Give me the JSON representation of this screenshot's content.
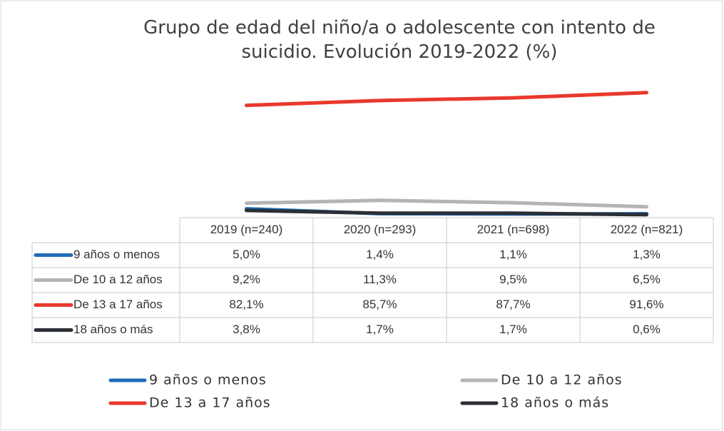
{
  "chart_data": {
    "type": "line",
    "title": "Grupo de edad del niño/a o adolescente con intento de suicidio. Evolución 2019-2022 (%)",
    "categories": [
      "2019 (n=240)",
      "2020 (n=293)",
      "2021 (n=698)",
      "2022 (n=821)"
    ],
    "ylim": [
      0,
      100
    ],
    "series": [
      {
        "name": "9 años o menos",
        "color": "#1f6cb8",
        "values": [
          5.0,
          1.4,
          1.1,
          1.3
        ],
        "value_labels": [
          "5,0%",
          "1,4%",
          "1,1%",
          "1,3%"
        ]
      },
      {
        "name": "De 10 a 12 años",
        "color": "#b4b4b4",
        "values": [
          9.2,
          11.3,
          9.5,
          6.5
        ],
        "value_labels": [
          "9,2%",
          "11,3%",
          "9,5%",
          "6,5%"
        ]
      },
      {
        "name": "De 13 a 17 años",
        "color": "#e8392c",
        "values": [
          82.1,
          85.7,
          87.7,
          91.6
        ],
        "value_labels": [
          "82,1%",
          "85,7%",
          "87,7%",
          "91,6%"
        ]
      },
      {
        "name": "18 años o más",
        "color": "#2b2f35",
        "values": [
          3.8,
          1.7,
          1.7,
          0.6
        ],
        "value_labels": [
          "3,8%",
          "1,7%",
          "1,7%",
          "0,6%"
        ]
      }
    ],
    "legend": "bottom"
  }
}
